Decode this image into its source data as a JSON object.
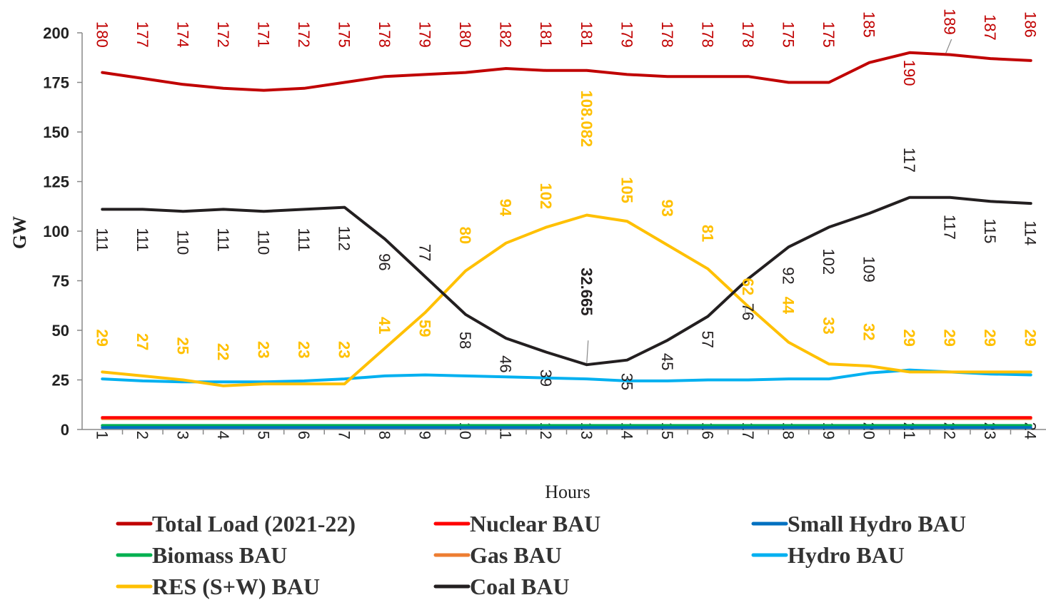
{
  "chart_data": {
    "type": "line",
    "xlabel": "Hours",
    "ylabel": "GW",
    "ylim": [
      0,
      200
    ],
    "yticks": [
      "0",
      "25",
      "50",
      "75",
      "100",
      "125",
      "150",
      "175",
      "200"
    ],
    "x": [
      "1",
      "2",
      "3",
      "4",
      "5",
      "6",
      "7",
      "8",
      "9",
      "10",
      "11",
      "12",
      "13",
      "14",
      "15",
      "16",
      "17",
      "18",
      "19",
      "20",
      "21",
      "22",
      "23",
      "24"
    ],
    "grid": false,
    "legend_position": "bottom",
    "series": [
      {
        "name": "Total Load (2021-22)",
        "color": "#C00000",
        "values": [
          180,
          177,
          174,
          172,
          171,
          172,
          175,
          178,
          179,
          180,
          182,
          181,
          181,
          179,
          178,
          178,
          178,
          175,
          175,
          185,
          190,
          189,
          187,
          186
        ],
        "labels": [
          "180",
          "177",
          "174",
          "172",
          "171",
          "172",
          "175",
          "178",
          "179",
          "180",
          "182",
          "181",
          "181",
          "179",
          "178",
          "178",
          "178",
          "175",
          "175",
          "185",
          "190",
          "189",
          "187",
          "186"
        ]
      },
      {
        "name": "Nuclear BAU",
        "color": "#FF0000",
        "values": [
          6,
          6,
          6,
          6,
          6,
          6,
          6,
          6,
          6,
          6,
          6,
          6,
          6,
          6,
          6,
          6,
          6,
          6,
          6,
          6,
          6,
          6,
          6,
          6
        ]
      },
      {
        "name": "Small Hydro BAU",
        "color": "#0070C0",
        "values": [
          1,
          1,
          1,
          1,
          1,
          1,
          1,
          1,
          1,
          1,
          1,
          1,
          1,
          1,
          1,
          1,
          1,
          1,
          1,
          1,
          1,
          1,
          1,
          1
        ]
      },
      {
        "name": "Biomass BAU",
        "color": "#00B050",
        "values": [
          2,
          2,
          2,
          2,
          2,
          2,
          2,
          2,
          2,
          2,
          2,
          2,
          2,
          2,
          2,
          2,
          2,
          2,
          2,
          2,
          2,
          2,
          2,
          2
        ]
      },
      {
        "name": "Gas BAU",
        "color": "#ED7D31",
        "values": [
          5.5,
          5.5,
          5.5,
          5.5,
          5.5,
          5.5,
          5.5,
          5.5,
          5.5,
          5.5,
          5.5,
          5.5,
          5.5,
          5.5,
          5.5,
          5.5,
          5.5,
          5.5,
          5.5,
          5.5,
          5.5,
          5.5,
          5.5,
          5.5
        ]
      },
      {
        "name": "Hydro BAU",
        "color": "#00B0F0",
        "values": [
          25.5,
          24.5,
          24,
          24,
          24,
          24.5,
          25.5,
          27,
          27.5,
          27,
          26.5,
          26,
          25.5,
          24.5,
          24.5,
          25,
          25,
          25.5,
          25.5,
          28.5,
          30,
          29,
          28,
          27.5
        ]
      },
      {
        "name": "RES (S+W) BAU",
        "color": "#FFC000",
        "values": [
          29,
          27,
          25,
          22,
          23,
          23,
          23,
          41,
          59,
          80,
          94,
          102,
          108.082,
          105,
          93,
          81,
          62,
          44,
          33,
          32,
          29,
          29,
          29,
          29
        ],
        "labels": [
          "29",
          "27",
          "25",
          "22",
          "23",
          "23",
          "23",
          "41",
          "59",
          "80",
          "94",
          "102",
          "108.082",
          "105",
          "93",
          "81",
          "62",
          "44",
          "33",
          "32",
          "29",
          "29",
          "29",
          "29"
        ]
      },
      {
        "name": "Coal BAU",
        "color": "#231F20",
        "values": [
          111,
          111,
          110,
          111,
          110,
          111,
          112,
          96,
          77,
          58,
          46,
          39,
          32.665,
          35,
          45,
          57,
          76,
          92,
          102,
          109,
          117,
          117,
          115,
          114
        ],
        "labels": [
          "111",
          "111",
          "110",
          "111",
          "110",
          "111",
          "112",
          "96",
          "77",
          "58",
          "46",
          "39",
          "32.665",
          "35",
          "45",
          "57",
          "76",
          "92",
          "102",
          "109",
          "117",
          "117",
          "115",
          "114"
        ]
      }
    ]
  }
}
